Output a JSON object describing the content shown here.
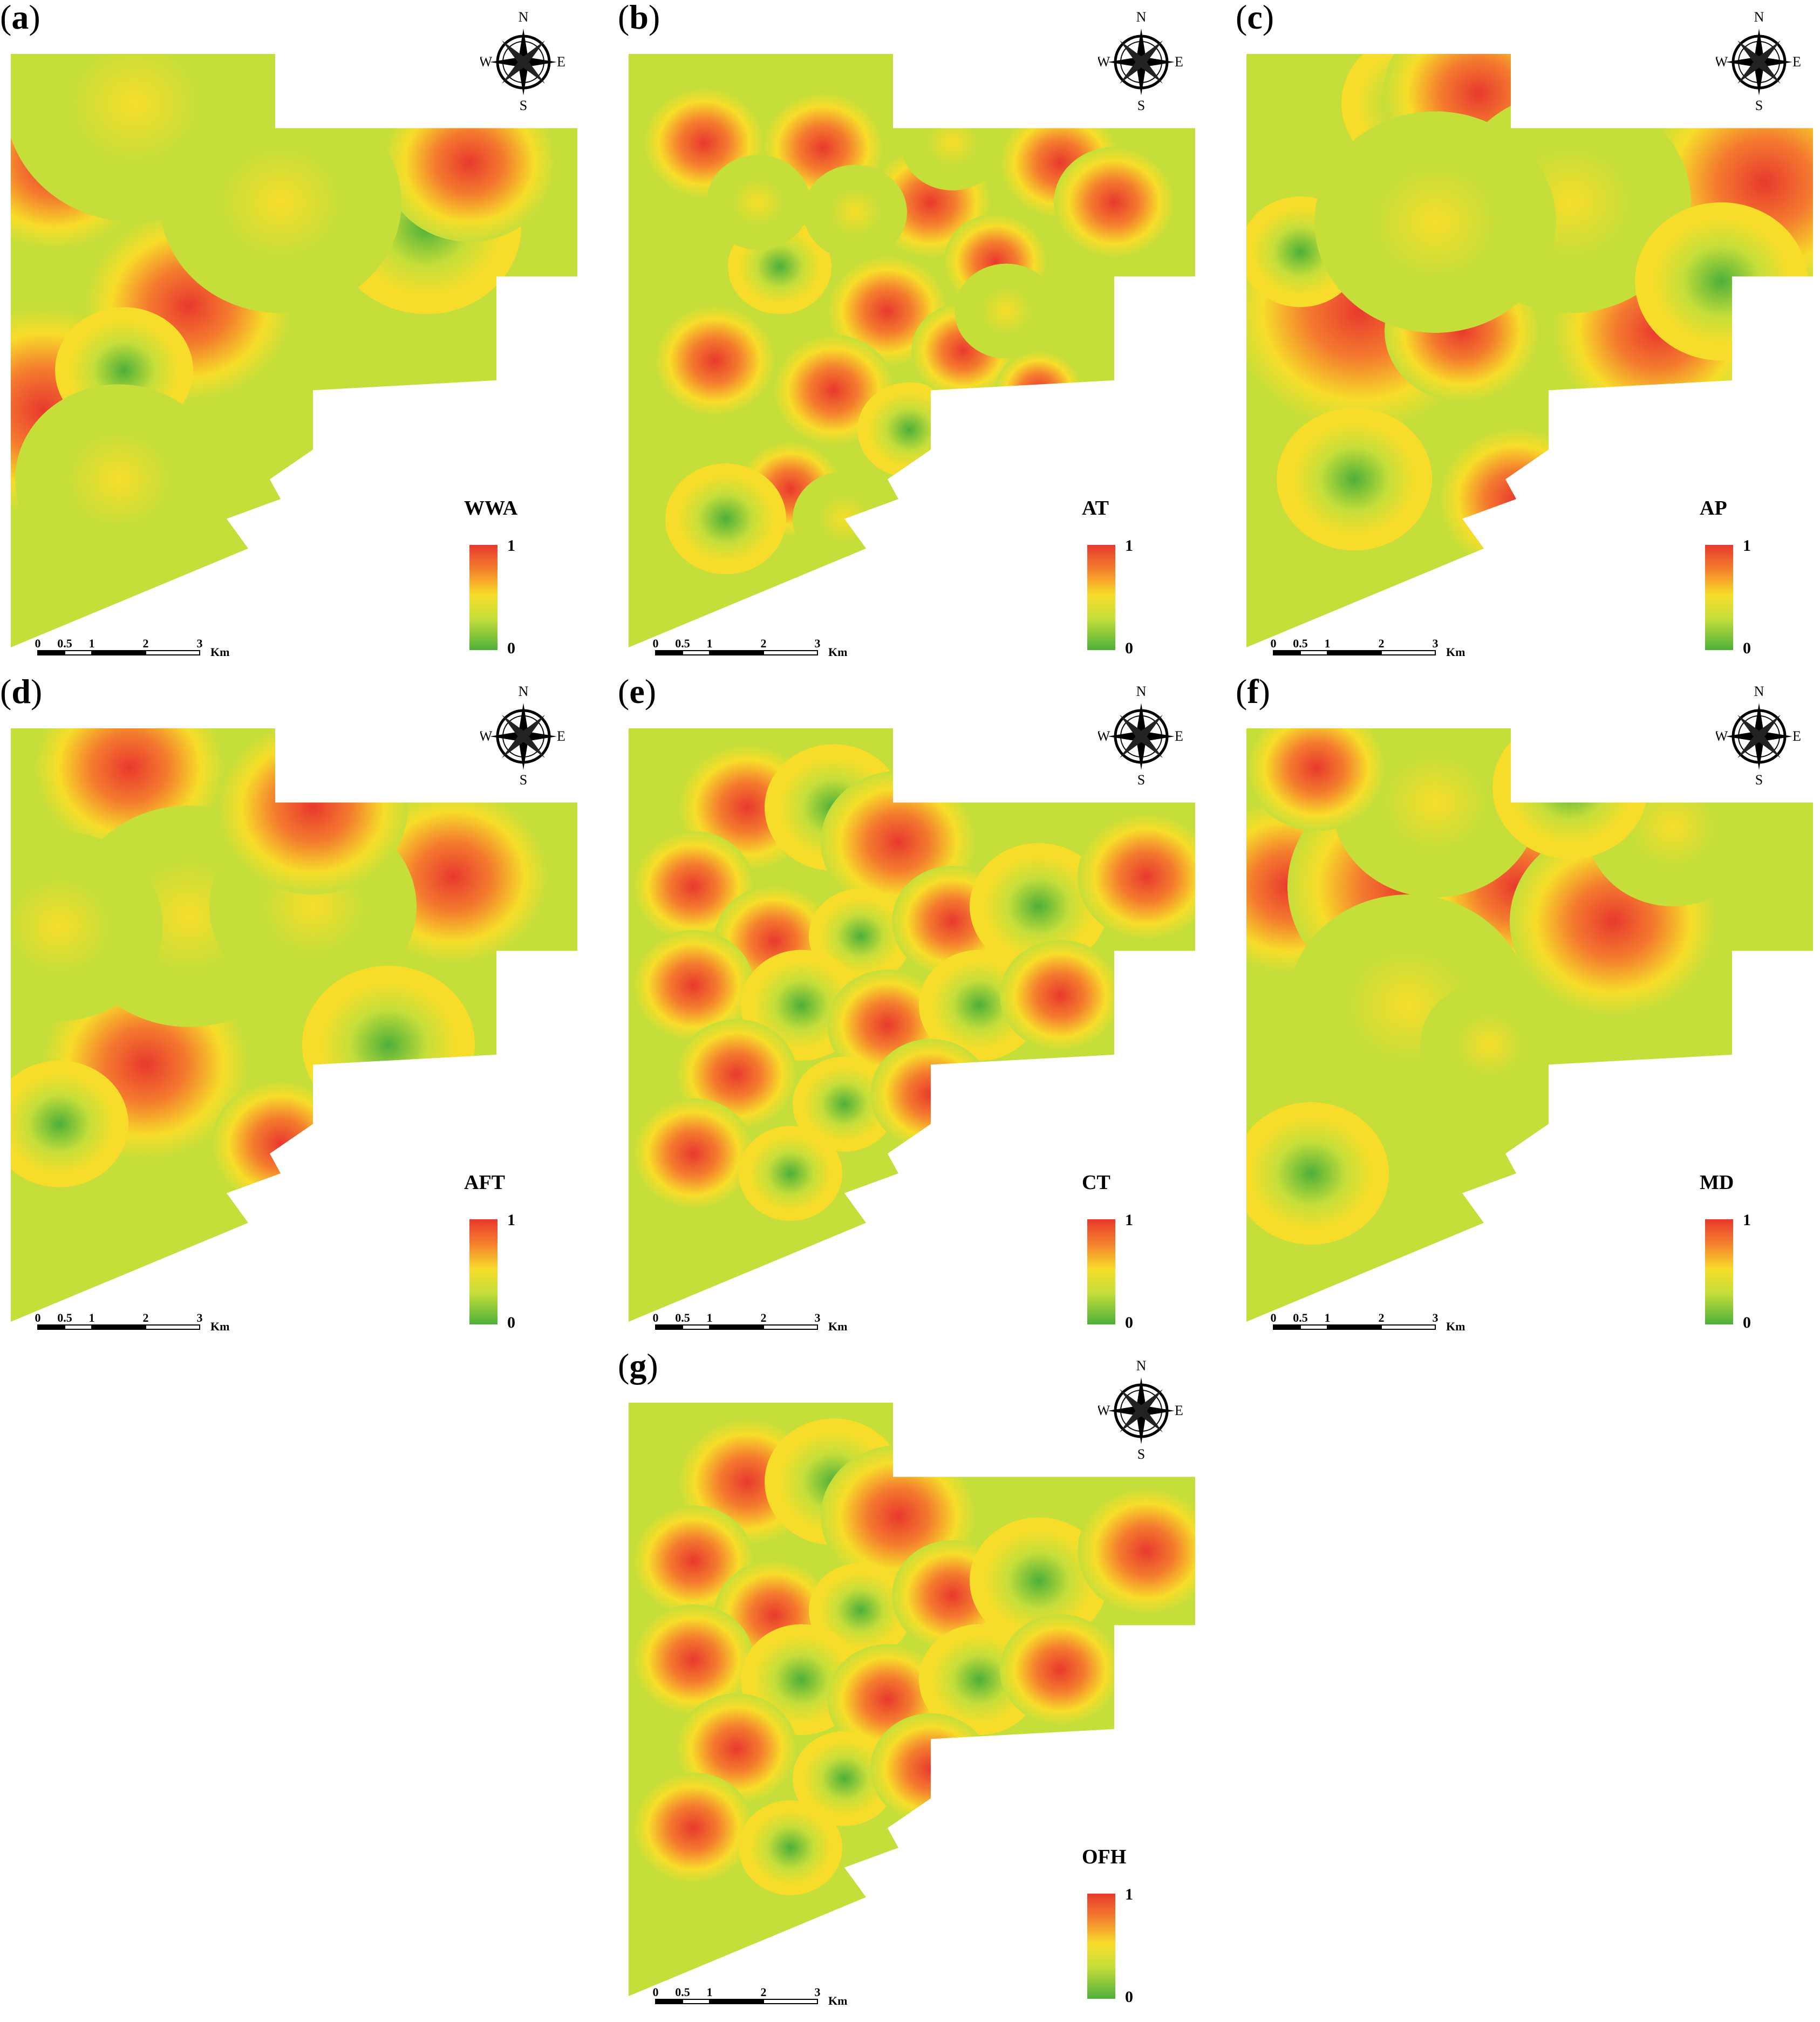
{
  "panels": [
    {
      "id": "a",
      "label_open": "(",
      "letter": "a",
      "label_close": ")",
      "variable": "WWA",
      "legend_max": "1",
      "legend_min": "0"
    },
    {
      "id": "b",
      "label_open": "(",
      "letter": "b",
      "label_close": ")",
      "variable": "AT",
      "legend_max": "1",
      "legend_min": "0"
    },
    {
      "id": "c",
      "label_open": "(",
      "letter": "c",
      "label_close": ")",
      "variable": "AP",
      "legend_max": "1",
      "legend_min": "0"
    },
    {
      "id": "d",
      "label_open": "(",
      "letter": "d",
      "label_close": ")",
      "variable": "AFT",
      "legend_max": "1",
      "legend_min": "0"
    },
    {
      "id": "e",
      "label_open": "(",
      "letter": "e",
      "label_close": ")",
      "variable": "CT",
      "legend_max": "1",
      "legend_min": "0"
    },
    {
      "id": "f",
      "label_open": "(",
      "letter": "f",
      "label_close": ")",
      "variable": "MD",
      "legend_max": "1",
      "legend_min": "0"
    },
    {
      "id": "g",
      "label_open": "(",
      "letter": "g",
      "label_close": ")",
      "variable": "OFH",
      "legend_max": "1",
      "legend_min": "0"
    }
  ],
  "compass": {
    "n": "N",
    "s": "S",
    "e": "E",
    "w": "W",
    "icon": "compass-rose-icon"
  },
  "scale": {
    "ticks": [
      "0",
      "0.5",
      "1",
      "2",
      "3"
    ],
    "unit": "Km"
  },
  "colors": {
    "high": "#e8392e",
    "mid_high": "#f47b2e",
    "mid": "#f7dd2a",
    "mid_low": "#c6de3a",
    "low": "#4daf3a"
  }
}
